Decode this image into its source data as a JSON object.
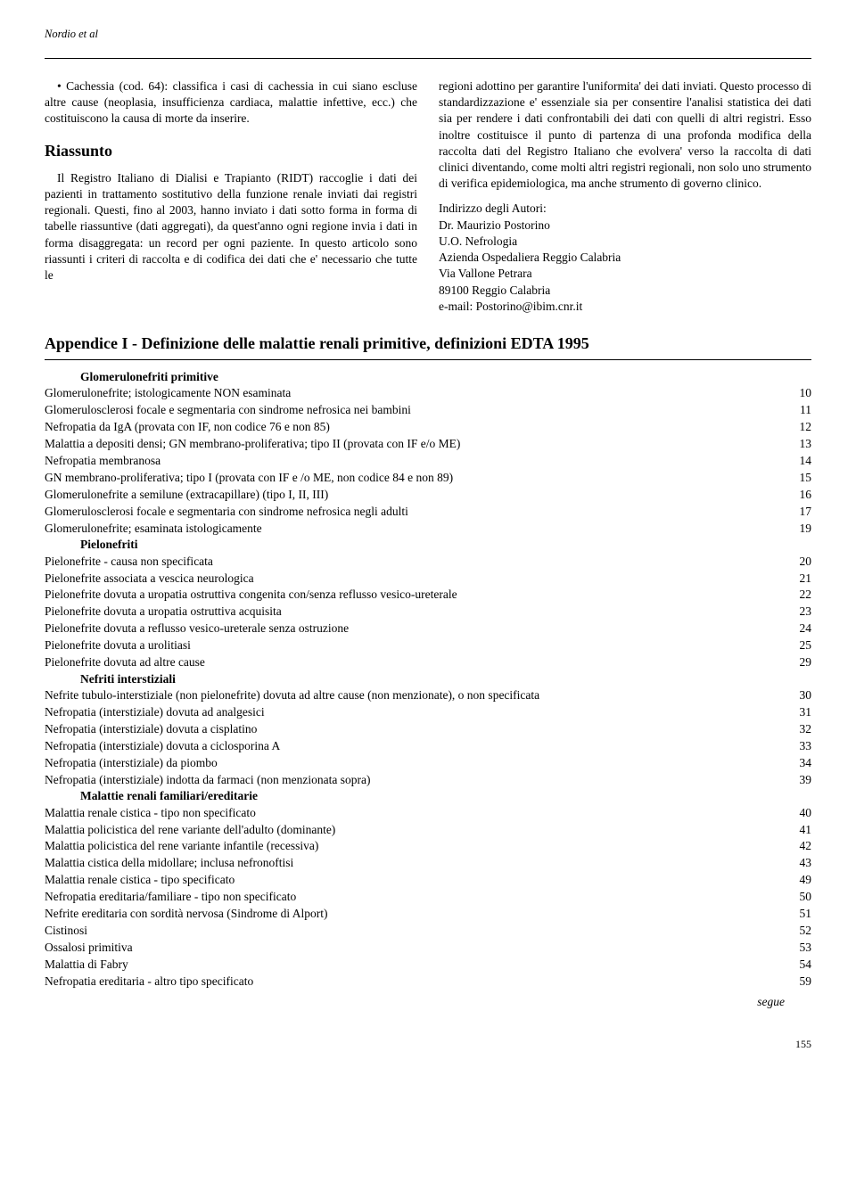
{
  "header_author": "Nordio et al",
  "bullet_text": "• Cachessia (cod. 64): classifica i casi di cachessia in cui siano escluse altre cause (neoplasia, insufficienza cardiaca, malattie infettive, ecc.) che costituiscono la causa di morte da inserire.",
  "riassunto_title": "Riassunto",
  "riassunto_p1": "Il Registro Italiano di Dialisi e Trapianto (RIDT) raccoglie i dati dei pazienti in trattamento sostitutivo della funzione renale inviati dai registri regionali. Questi, fino al 2003, hanno inviato i dati sotto forma in forma di tabelle riassuntive (dati aggregati), da quest'anno ogni regione invia i dati in forma disaggregata: un record per ogni paziente. In questo articolo sono riassunti i criteri di raccolta e di codifica dei dati che e' necessario che tutte le",
  "right_p1": "regioni adottino per garantire l'uniformita' dei dati inviati. Questo processo di standardizzazione e' essenziale sia per consentire l'analisi statistica dei dati sia per rendere i dati confrontabili dei dati con quelli di altri registri. Esso inoltre costituisce il punto di partenza di una profonda modifica della raccolta dati del Registro Italiano che evolvera' verso la raccolta di dati clinici diventando, come molti altri registri regionali, non solo uno strumento di verifica epidemiologica, ma anche strumento di governo clinico.",
  "addr_label": "Indirizzo degli Autori:",
  "addr_name": "Dr. Maurizio Postorino",
  "addr_dept": "U.O. Nefrologia",
  "addr_hosp": "Azienda Ospedaliera Reggio Calabria",
  "addr_street": "Via Vallone Petrara",
  "addr_city": "89100 Reggio Calabria",
  "addr_email": "e-mail: Postorino@ibim.cnr.it",
  "appendix_title": "Appendice I - Definizione delle malattie renali primitive, definizioni EDTA 1995",
  "sections": [
    {
      "head": "Glomerulonefriti primitive",
      "rows": [
        {
          "label": "Glomerulonefrite; istologicamente NON esaminata",
          "code": "10"
        },
        {
          "label": "Glomerulosclerosi focale e segmentaria con sindrome nefrosica nei bambini",
          "code": "11"
        },
        {
          "label": "Nefropatia da IgA (provata con IF, non codice 76 e non 85)",
          "code": "12"
        },
        {
          "label": "Malattia a depositi densi; GN membrano-proliferativa; tipo II (provata con IF e/o ME)",
          "code": "13"
        },
        {
          "label": "Nefropatia membranosa",
          "code": "14"
        },
        {
          "label": "GN membrano-proliferativa; tipo I (provata con IF e /o ME, non codice 84 e non 89)",
          "code": "15"
        },
        {
          "label": "Glomerulonefrite a semilune (extracapillare) (tipo I, II, III)",
          "code": "16"
        },
        {
          "label": "Glomerulosclerosi focale e segmentaria con sindrome nefrosica negli adulti",
          "code": "17"
        },
        {
          "label": "Glomerulonefrite; esaminata istologicamente",
          "code": "19"
        }
      ]
    },
    {
      "head": "Pielonefriti",
      "rows": [
        {
          "label": "Pielonefrite - causa non specificata",
          "code": "20"
        },
        {
          "label": "Pielonefrite associata a vescica neurologica",
          "code": "21"
        },
        {
          "label": "Pielonefrite dovuta a uropatia ostruttiva congenita con/senza reflusso vesico-ureterale",
          "code": "22"
        },
        {
          "label": "Pielonefrite dovuta a uropatia ostruttiva acquisita",
          "code": "23"
        },
        {
          "label": "Pielonefrite dovuta a reflusso vesico-ureterale senza ostruzione",
          "code": "24"
        },
        {
          "label": "Pielonefrite dovuta a urolitiasi",
          "code": "25"
        },
        {
          "label": "Pielonefrite dovuta ad altre cause",
          "code": "29"
        }
      ]
    },
    {
      "head": "Nefriti interstiziali",
      "rows": [
        {
          "label": "Nefrite tubulo-interstiziale (non pielonefrite) dovuta ad altre cause (non menzionate), o non specificata",
          "code": "30"
        },
        {
          "label": "Nefropatia (interstiziale) dovuta ad analgesici",
          "code": "31"
        },
        {
          "label": "Nefropatia (interstiziale) dovuta a cisplatino",
          "code": "32"
        },
        {
          "label": "Nefropatia (interstiziale) dovuta a ciclosporina A",
          "code": "33"
        },
        {
          "label": "Nefropatia (interstiziale) da piombo",
          "code": "34"
        },
        {
          "label": "Nefropatia (interstiziale) indotta da farmaci (non menzionata sopra)",
          "code": "39"
        }
      ]
    },
    {
      "head": "Malattie renali familiari/ereditarie",
      "rows": [
        {
          "label": "Malattia renale cistica - tipo non specificato",
          "code": "40"
        },
        {
          "label": "Malattia policistica del rene variante dell'adulto (dominante)",
          "code": "41"
        },
        {
          "label": "Malattia policistica del rene variante infantile (recessiva)",
          "code": "42"
        },
        {
          "label": "Malattia cistica della midollare; inclusa nefronoftisi",
          "code": "43"
        },
        {
          "label": "Malattia renale cistica - tipo specificato",
          "code": "49"
        },
        {
          "label": "Nefropatia ereditaria/familiare - tipo non specificato",
          "code": "50"
        },
        {
          "label": "Nefrite ereditaria con sordità nervosa (Sindrome di Alport)",
          "code": "51"
        },
        {
          "label": "Cistinosi",
          "code": "52"
        },
        {
          "label": "Ossalosi primitiva",
          "code": "53"
        },
        {
          "label": "Malattia di Fabry",
          "code": "54"
        },
        {
          "label": "Nefropatia ereditaria - altro tipo specificato",
          "code": "59"
        }
      ]
    }
  ],
  "segue": "segue",
  "page_num": "155"
}
